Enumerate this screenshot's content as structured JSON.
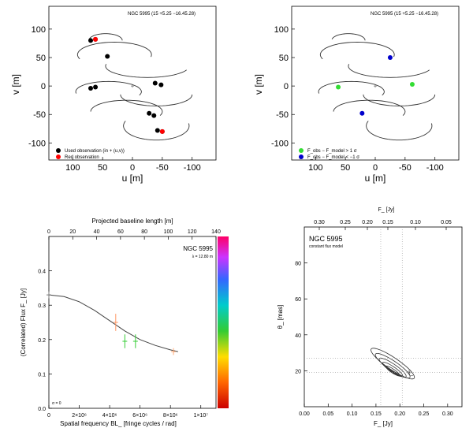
{
  "chart_data": [
    {
      "type": "scatter",
      "title": "NGC 5995 (15 +5.25   −16.45.28)",
      "xlabel": "u [m]",
      "ylabel": "v [m]",
      "xlim": [
        140,
        -140
      ],
      "ylim": [
        -130,
        140
      ],
      "xticks": [
        100,
        50,
        0,
        -50,
        -100
      ],
      "yticks": [
        100,
        50,
        0,
        -50,
        -100
      ],
      "series": [
        {
          "name": "Used observation (in + (u,v))",
          "color": "#000000",
          "points": [
            [
              70,
              80
            ],
            [
              62,
              82
            ],
            [
              42,
              52
            ],
            [
              -38,
              5
            ],
            [
              -48,
              2
            ],
            [
              62,
              -2
            ],
            [
              70,
              -4
            ],
            [
              -42,
              -78
            ],
            [
              -50,
              -80
            ],
            [
              -36,
              -52
            ],
            [
              -28,
              -48
            ]
          ]
        },
        {
          "name": "Red observation",
          "color": "#ff0000",
          "points": [
            [
              62,
              82
            ],
            [
              -50,
              -80
            ]
          ]
        }
      ],
      "legend": "bottom-left"
    },
    {
      "type": "scatter",
      "title": "NGC 5995 (15 +5.25   −16.45.28)",
      "xlabel": "u [m]",
      "ylabel": "v [m]",
      "xlim": [
        140,
        -140
      ],
      "ylim": [
        -130,
        140
      ],
      "xticks": [
        100,
        50,
        0,
        -50,
        -100
      ],
      "yticks": [
        100,
        50,
        0,
        -50,
        -100
      ],
      "series": [
        {
          "name": "F_obs − F_model > 1 σ",
          "color": "#33dd33",
          "points": [
            [
              62,
              -2
            ],
            [
              -62,
              3
            ]
          ]
        },
        {
          "name": "F_obs − F_model < −1 σ",
          "color": "#0000cc",
          "points": [
            [
              -25,
              50
            ],
            [
              22,
              -48
            ]
          ]
        }
      ],
      "legend": "bottom-left"
    },
    {
      "type": "scatter",
      "title": "NGC 5995",
      "subtitle": "λ = 12.80 m",
      "xlabel": "Spatial frequency BL_ [fringe cycles / rad]",
      "ylabel": "(Correlated) Flux F_ [Jy]",
      "top_xlabel": "Projected baseline length [m]",
      "xlim": [
        0,
        11000000.0
      ],
      "ylim": [
        0,
        0.5
      ],
      "xticks": [
        "0",
        "2×10⁶",
        "4×10⁶",
        "6×10⁶",
        "8×10⁶",
        "1×10⁷"
      ],
      "top_xticks": [
        0,
        20,
        40,
        60,
        80,
        100,
        120,
        140
      ],
      "yticks": [
        0.0,
        0.1,
        0.2,
        0.3,
        0.4
      ],
      "points": [
        {
          "x": 0,
          "y": 0.33,
          "err": 0.01,
          "color": "#777777"
        },
        {
          "x": 4400000,
          "y": 0.25,
          "err": 0.025,
          "color": "#ff9966"
        },
        {
          "x": 5000000,
          "y": 0.195,
          "err": 0.02,
          "color": "#33cc33"
        },
        {
          "x": 5700000,
          "y": 0.195,
          "err": 0.02,
          "color": "#33cc33"
        },
        {
          "x": 8200000,
          "y": 0.165,
          "err": 0.01,
          "color": "#ffaa77"
        }
      ],
      "model_curve": [
        [
          0,
          0.33
        ],
        [
          1000000,
          0.325
        ],
        [
          2000000,
          0.31
        ],
        [
          3000000,
          0.285
        ],
        [
          4000000,
          0.255
        ],
        [
          5000000,
          0.225
        ],
        [
          6000000,
          0.2
        ],
        [
          7000000,
          0.183
        ],
        [
          8000000,
          0.17
        ],
        [
          8500000,
          0.165
        ]
      ],
      "colorbar": {
        "min": 0,
        "max": 180
      },
      "corner_note": "σ = 0"
    },
    {
      "type": "contour",
      "title": "NGC 5995",
      "subtitle": "constant flux model",
      "xlabel": "F_ [Jy]",
      "ylabel": "θ_ [mas]",
      "top_xlabel": "F_ [Jy]",
      "xlim": [
        0,
        0.33
      ],
      "ylim": [
        0,
        100
      ],
      "xticks": [
        "0.00",
        "0.05",
        "0.10",
        "0.15",
        "0.20",
        "0.25",
        "0.30"
      ],
      "top_xticks": [
        "0.30",
        "0.25",
        "0.20",
        "0.15",
        "0.10",
        "0.05"
      ],
      "yticks": [
        20,
        40,
        60,
        80
      ],
      "best_fit": {
        "x": 0.21,
        "y": 18
      },
      "guide_lines": {
        "x": [
          0.16,
          0.205
        ],
        "y": [
          27,
          19
        ]
      },
      "best_fit_label": "θ_"
    }
  ]
}
